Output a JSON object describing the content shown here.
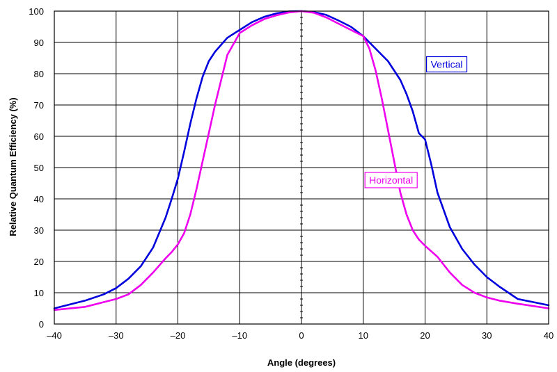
{
  "chart_data": {
    "type": "line",
    "xlabel": "Angle (degrees)",
    "ylabel": "Relative Quantum Efficiency (%)",
    "xlim": [
      -40,
      40
    ],
    "ylim": [
      0,
      100
    ],
    "x_ticks": [
      -40,
      -30,
      -20,
      -10,
      0,
      10,
      20,
      30,
      40
    ],
    "x_tick_labels": [
      "–40",
      "–30",
      "–20",
      "–10",
      "0",
      "10",
      "20",
      "30",
      "40"
    ],
    "y_ticks": [
      0,
      10,
      20,
      30,
      40,
      50,
      60,
      70,
      80,
      90,
      100
    ],
    "y_tick_labels": [
      "0",
      "10",
      "20",
      "30",
      "40",
      "50",
      "60",
      "70",
      "80",
      "90",
      "100"
    ],
    "grid": true,
    "series": [
      {
        "name": "Vertical",
        "color": "#0000dd",
        "x": [
          -40,
          -35,
          -32,
          -30,
          -28,
          -26,
          -24,
          -22,
          -21,
          -20,
          -19,
          -18,
          -17,
          -16,
          -15,
          -14,
          -12,
          -10,
          -8,
          -6,
          -4,
          -2,
          0,
          2,
          4,
          6,
          8,
          10,
          12,
          14,
          16,
          17,
          18,
          19,
          20,
          21,
          22,
          24,
          26,
          28,
          30,
          32,
          35,
          40
        ],
        "y": [
          5,
          7.5,
          9.5,
          11.5,
          14.5,
          18.5,
          24.5,
          34,
          40,
          46.5,
          55,
          64,
          72,
          79,
          84,
          87,
          91.5,
          94,
          96.5,
          98.2,
          99.3,
          99.9,
          100,
          99.7,
          98.8,
          97,
          95,
          92,
          88,
          84,
          78,
          73.5,
          68,
          61,
          59,
          51,
          42,
          31,
          24,
          19,
          15,
          12,
          8,
          6
        ]
      },
      {
        "name": "Horizontal",
        "color": "#ee00ee",
        "x": [
          -40,
          -35,
          -32,
          -30,
          -28,
          -26,
          -24,
          -22,
          -21,
          -20,
          -19,
          -18,
          -17,
          -16,
          -15,
          -14,
          -12,
          -10,
          -8,
          -6,
          -4,
          -2,
          0,
          2,
          4,
          6,
          8,
          10,
          11,
          12,
          13,
          14,
          15,
          16,
          17,
          18,
          19,
          20,
          22,
          24,
          26,
          28,
          30,
          32,
          35,
          40
        ],
        "y": [
          4.5,
          5.5,
          7,
          8,
          9.5,
          12.5,
          16.5,
          21,
          23,
          25.5,
          29,
          35,
          43,
          52,
          61,
          70,
          86,
          93,
          95.5,
          97.5,
          98.7,
          99.6,
          100,
          99.5,
          98,
          96,
          94,
          92,
          88,
          81,
          72,
          62,
          52,
          42,
          35,
          30,
          27,
          25,
          21.5,
          16.5,
          12.5,
          10,
          8.5,
          7.5,
          6.5,
          5
        ]
      }
    ],
    "annotations": [
      {
        "text": "Vertical",
        "series": "Vertical",
        "x": 23.5,
        "y": 83
      },
      {
        "text": "Horizontal",
        "series": "Horizontal",
        "x": 14.5,
        "y": 46
      }
    ]
  }
}
